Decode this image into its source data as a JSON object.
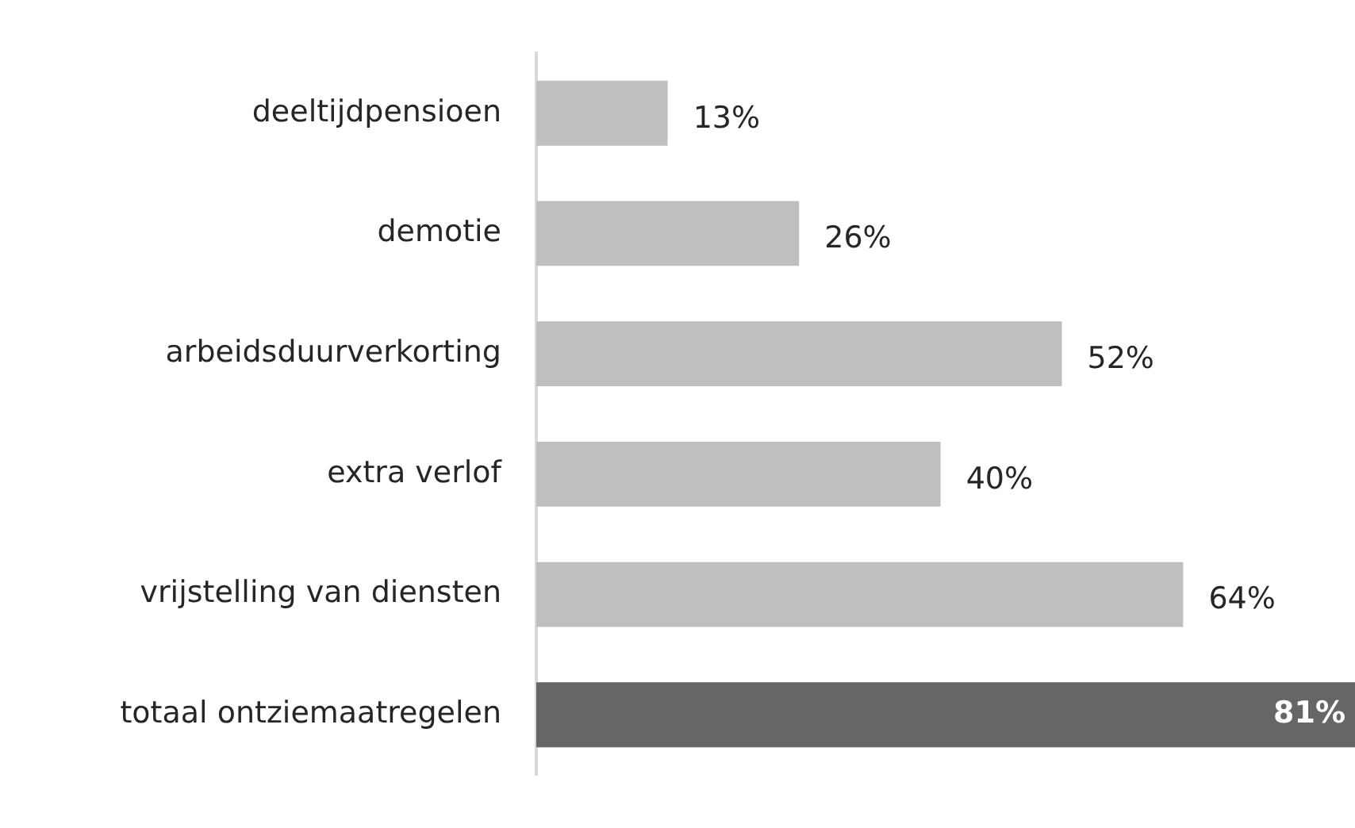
{
  "chart_data": {
    "type": "bar",
    "orientation": "horizontal",
    "categories": [
      "deeltijdpensioen",
      "demotie",
      "arbeidsduurverkorting",
      "extra verlof",
      "vrijstelling van diensten",
      "totaal ontziemaatregelen"
    ],
    "values": [
      13,
      26,
      52,
      40,
      64,
      81
    ],
    "colors": [
      "#bfbfbf",
      "#bfbfbf",
      "#bfbfbf",
      "#bfbfbf",
      "#bfbfbf",
      "#666666"
    ],
    "value_labels": [
      "13%",
      "26%",
      "52%",
      "40%",
      "64%",
      "81%"
    ],
    "grid": false,
    "legend": false
  }
}
